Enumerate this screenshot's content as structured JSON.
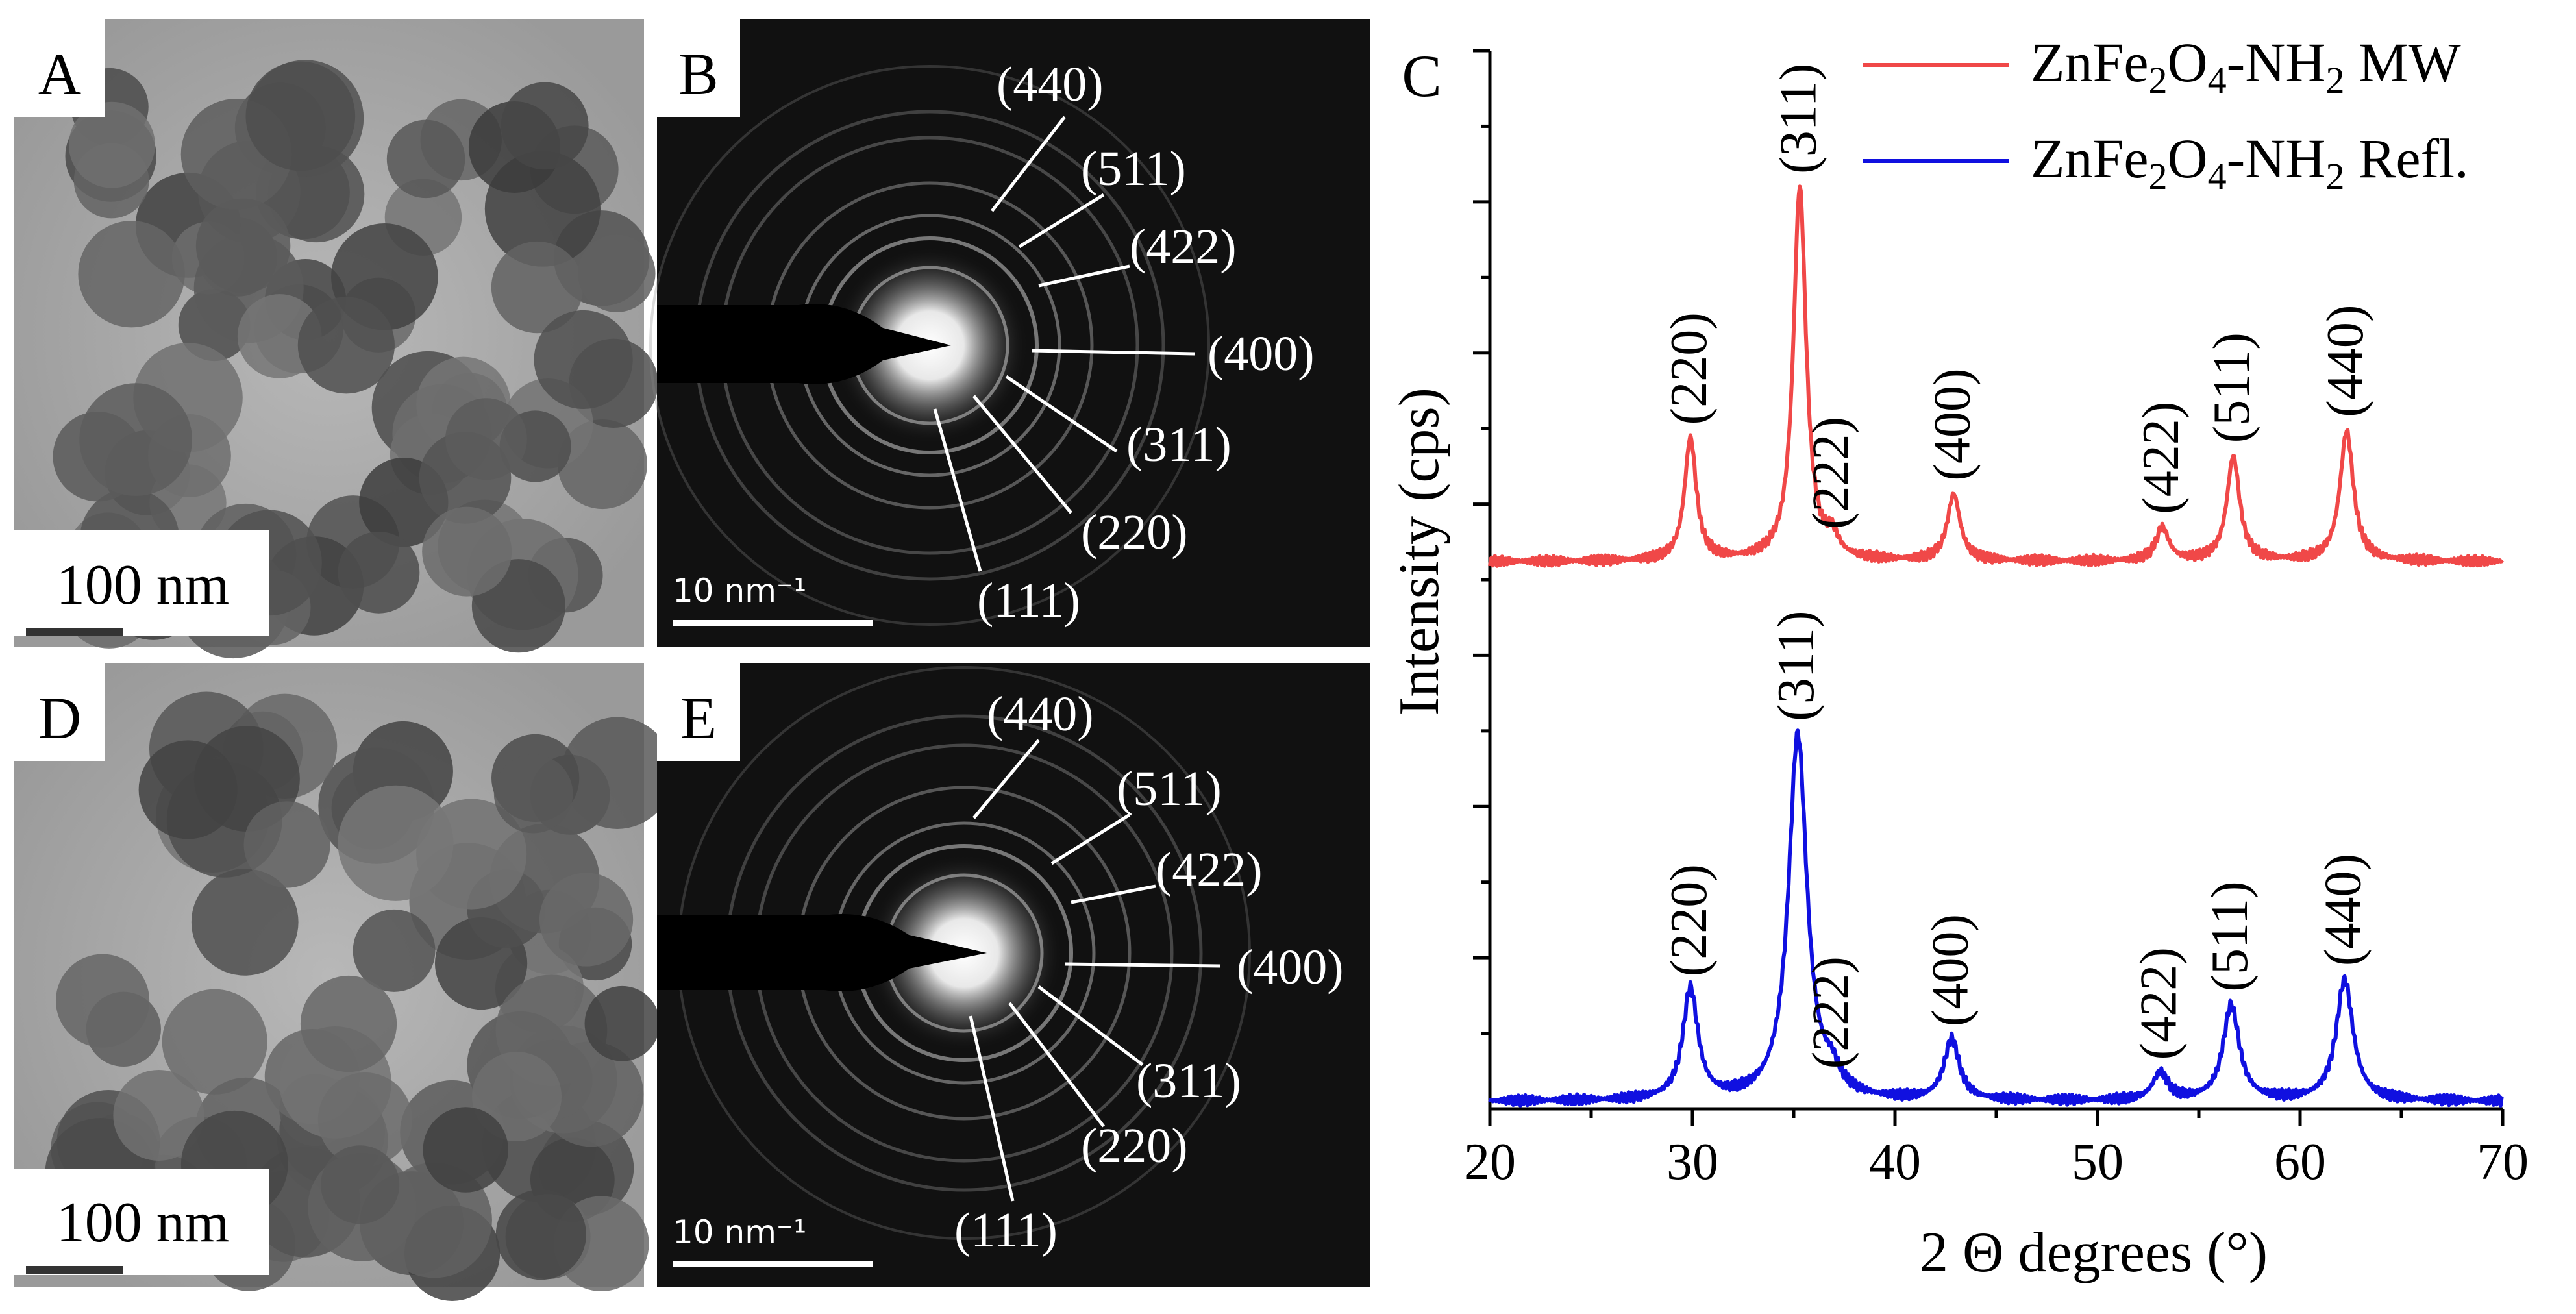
{
  "panels": {
    "A": {
      "letter": "A",
      "scale_text": "100 nm"
    },
    "B": {
      "letter": "B",
      "scale_text": "10 nm⁻¹",
      "labels": [
        "(440)",
        "(511)",
        "(422)",
        "(400)",
        "(311)",
        "(220)",
        "(111)"
      ]
    },
    "C": {
      "letter": "C"
    },
    "D": {
      "letter": "D",
      "scale_text": "100 nm"
    },
    "E": {
      "letter": "E",
      "scale_text": "10 nm⁻¹",
      "labels": [
        "(440)",
        "(511)",
        "(422)",
        "(400)",
        "(311)",
        "(220)",
        "(111)"
      ]
    }
  },
  "chart_data": {
    "type": "line",
    "title": "",
    "xlabel": "2 Θ degrees (°)",
    "ylabel": "Intensity (cps)",
    "xlim": [
      20,
      70
    ],
    "ylim": [
      0,
      7
    ],
    "x_ticks": [
      20,
      30,
      40,
      50,
      60,
      70
    ],
    "legend": {
      "position": "top-right"
    },
    "colors": {
      "mw": "#f04848",
      "refl": "#1010e0",
      "axis": "#000000"
    },
    "series": [
      {
        "name": "ZnFe₂O₄-NH₂ MW",
        "legend_parts": [
          "ZnFe",
          "2",
          "O",
          "4",
          "-NH",
          "2",
          " MW"
        ],
        "color": "#f04848",
        "baseline": 3.62,
        "peaks": [
          {
            "x": 29.9,
            "height": 0.81,
            "hkl": "(220)",
            "width": 0.35
          },
          {
            "x": 35.3,
            "height": 2.47,
            "hkl": "(311)",
            "width": 0.38
          },
          {
            "x": 36.9,
            "height": 0.12,
            "hkl": "(222)",
            "width": 0.35
          },
          {
            "x": 42.9,
            "height": 0.44,
            "hkl": "(400)",
            "width": 0.38
          },
          {
            "x": 53.2,
            "height": 0.22,
            "hkl": "(422)",
            "width": 0.38
          },
          {
            "x": 56.7,
            "height": 0.69,
            "hkl": "(511)",
            "width": 0.38
          },
          {
            "x": 62.3,
            "height": 0.86,
            "hkl": "(440)",
            "width": 0.4
          }
        ]
      },
      {
        "name": "ZnFe₂O₄-NH₂ Refl.",
        "legend_parts": [
          "ZnFe",
          "2",
          "O",
          "4",
          "-NH",
          "2",
          " Refl."
        ],
        "color": "#1010e0",
        "baseline": 0.05,
        "peaks": [
          {
            "x": 29.9,
            "height": 0.73,
            "hkl": "(220)",
            "width": 0.45
          },
          {
            "x": 35.2,
            "height": 2.42,
            "hkl": "(311)",
            "width": 0.55
          },
          {
            "x": 36.9,
            "height": 0.12,
            "hkl": "(222)",
            "width": 0.45
          },
          {
            "x": 42.8,
            "height": 0.4,
            "hkl": "(400)",
            "width": 0.45
          },
          {
            "x": 53.1,
            "height": 0.18,
            "hkl": "(422)",
            "width": 0.45
          },
          {
            "x": 56.6,
            "height": 0.63,
            "hkl": "(511)",
            "width": 0.48
          },
          {
            "x": 62.2,
            "height": 0.8,
            "hkl": "(440)",
            "width": 0.5
          }
        ]
      }
    ]
  }
}
